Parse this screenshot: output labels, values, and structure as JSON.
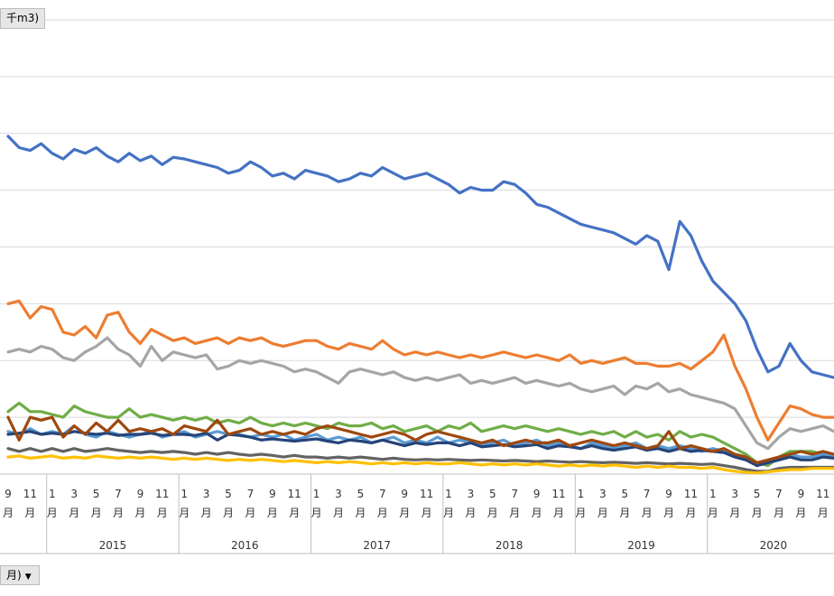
{
  "field_buttons": {
    "unit": "千m3)",
    "axis_field": "月)",
    "axis_field_arrow": "▼"
  },
  "chart_data": {
    "type": "line",
    "title": "",
    "xlabel": "",
    "ylabel": "",
    "grid": true,
    "legend": "none",
    "ylim": [
      0,
      8
    ],
    "x": [
      "2014-09",
      "2014-10",
      "2014-11",
      "2014-12",
      "2015-01",
      "2015-02",
      "2015-03",
      "2015-04",
      "2015-05",
      "2015-06",
      "2015-07",
      "2015-08",
      "2015-09",
      "2015-10",
      "2015-11",
      "2015-12",
      "2016-01",
      "2016-02",
      "2016-03",
      "2016-04",
      "2016-05",
      "2016-06",
      "2016-07",
      "2016-08",
      "2016-09",
      "2016-10",
      "2016-11",
      "2016-12",
      "2017-01",
      "2017-02",
      "2017-03",
      "2017-04",
      "2017-05",
      "2017-06",
      "2017-07",
      "2017-08",
      "2017-09",
      "2017-10",
      "2017-11",
      "2017-12",
      "2018-01",
      "2018-02",
      "2018-03",
      "2018-04",
      "2018-05",
      "2018-06",
      "2018-07",
      "2018-08",
      "2018-09",
      "2018-10",
      "2018-11",
      "2018-12",
      "2019-01",
      "2019-02",
      "2019-03",
      "2019-04",
      "2019-05",
      "2019-06",
      "2019-07",
      "2019-08",
      "2019-09",
      "2019-10",
      "2019-11",
      "2019-12",
      "2020-01",
      "2020-02",
      "2020-03",
      "2020-04",
      "2020-05",
      "2020-06",
      "2020-07",
      "2020-08",
      "2020-09",
      "2020-10",
      "2020-11",
      "2020-12"
    ],
    "year_groups": [
      {
        "label": "2015",
        "start": 4,
        "end": 15
      },
      {
        "label": "2016",
        "start": 16,
        "end": 27
      },
      {
        "label": "2017",
        "start": 28,
        "end": 39
      },
      {
        "label": "2018",
        "start": 40,
        "end": 51
      },
      {
        "label": "2019",
        "start": 52,
        "end": 63
      },
      {
        "label": "2020",
        "start": 64,
        "end": 75
      }
    ],
    "month_ticks": [
      {
        "index": 0,
        "label": "9",
        "sub": "月"
      },
      {
        "index": 2,
        "label": "11",
        "sub": "月"
      },
      {
        "index": 4,
        "label": "1",
        "sub": "月"
      },
      {
        "index": 6,
        "label": "3",
        "sub": "月"
      },
      {
        "index": 8,
        "label": "5",
        "sub": "月"
      },
      {
        "index": 10,
        "label": "7",
        "sub": "月"
      },
      {
        "index": 12,
        "label": "9",
        "sub": "月"
      },
      {
        "index": 14,
        "label": "11",
        "sub": "月"
      },
      {
        "index": 16,
        "label": "1",
        "sub": "月"
      },
      {
        "index": 18,
        "label": "3",
        "sub": "月"
      },
      {
        "index": 20,
        "label": "5",
        "sub": "月"
      },
      {
        "index": 22,
        "label": "7",
        "sub": "月"
      },
      {
        "index": 24,
        "label": "9",
        "sub": "月"
      },
      {
        "index": 26,
        "label": "11",
        "sub": "月"
      },
      {
        "index": 28,
        "label": "1",
        "sub": "月"
      },
      {
        "index": 30,
        "label": "3",
        "sub": "月"
      },
      {
        "index": 32,
        "label": "5",
        "sub": "月"
      },
      {
        "index": 34,
        "label": "7",
        "sub": "月"
      },
      {
        "index": 36,
        "label": "9",
        "sub": "月"
      },
      {
        "index": 38,
        "label": "11",
        "sub": "月"
      },
      {
        "index": 40,
        "label": "1",
        "sub": "月"
      },
      {
        "index": 42,
        "label": "3",
        "sub": "月"
      },
      {
        "index": 44,
        "label": "5",
        "sub": "月"
      },
      {
        "index": 46,
        "label": "7",
        "sub": "月"
      },
      {
        "index": 48,
        "label": "9",
        "sub": "月"
      },
      {
        "index": 50,
        "label": "11",
        "sub": "月"
      },
      {
        "index": 52,
        "label": "1",
        "sub": "月"
      },
      {
        "index": 54,
        "label": "3",
        "sub": "月"
      },
      {
        "index": 56,
        "label": "5",
        "sub": "月"
      },
      {
        "index": 58,
        "label": "7",
        "sub": "月"
      },
      {
        "index": 60,
        "label": "9",
        "sub": "月"
      },
      {
        "index": 62,
        "label": "11",
        "sub": "月"
      },
      {
        "index": 64,
        "label": "1",
        "sub": "月"
      },
      {
        "index": 66,
        "label": "3",
        "sub": "月"
      },
      {
        "index": 68,
        "label": "5",
        "sub": "月"
      },
      {
        "index": 70,
        "label": "7",
        "sub": "月"
      },
      {
        "index": 72,
        "label": "9",
        "sub": "月"
      },
      {
        "index": 74,
        "label": "11",
        "sub": "月"
      }
    ],
    "series": [
      {
        "color": "#4472c4",
        "values": [
          5.95,
          5.75,
          5.7,
          5.82,
          5.65,
          5.55,
          5.72,
          5.65,
          5.75,
          5.6,
          5.5,
          5.65,
          5.52,
          5.6,
          5.45,
          5.58,
          5.55,
          5.5,
          5.45,
          5.4,
          5.3,
          5.35,
          5.5,
          5.4,
          5.25,
          5.3,
          5.2,
          5.35,
          5.3,
          5.25,
          5.15,
          5.2,
          5.3,
          5.25,
          5.4,
          5.3,
          5.2,
          5.25,
          5.3,
          5.2,
          5.1,
          4.95,
          5.05,
          5.0,
          5.0,
          5.15,
          5.1,
          4.95,
          4.75,
          4.7,
          4.6,
          4.5,
          4.4,
          4.35,
          4.3,
          4.25,
          4.15,
          4.05,
          4.2,
          4.1,
          3.6,
          4.45,
          4.2,
          3.75,
          3.4,
          3.2,
          3.0,
          2.7,
          2.2,
          1.8,
          1.9,
          2.3,
          2.0,
          1.8,
          1.75,
          1.7
        ]
      },
      {
        "color": "#ed7d31",
        "values": [
          3.0,
          3.05,
          2.75,
          2.95,
          2.9,
          2.5,
          2.45,
          2.6,
          2.4,
          2.8,
          2.85,
          2.5,
          2.3,
          2.55,
          2.45,
          2.35,
          2.4,
          2.3,
          2.35,
          2.4,
          2.3,
          2.4,
          2.35,
          2.4,
          2.3,
          2.25,
          2.3,
          2.35,
          2.35,
          2.25,
          2.2,
          2.3,
          2.25,
          2.2,
          2.35,
          2.2,
          2.1,
          2.15,
          2.1,
          2.15,
          2.1,
          2.05,
          2.1,
          2.05,
          2.1,
          2.15,
          2.1,
          2.05,
          2.1,
          2.05,
          2.0,
          2.1,
          1.95,
          2.0,
          1.95,
          2.0,
          2.05,
          1.95,
          1.95,
          1.9,
          1.9,
          1.95,
          1.85,
          2.0,
          2.15,
          2.45,
          1.9,
          1.5,
          1.0,
          0.6,
          0.9,
          1.2,
          1.15,
          1.05,
          1.0,
          1.0
        ]
      },
      {
        "color": "#a5a5a5",
        "values": [
          2.15,
          2.2,
          2.15,
          2.25,
          2.2,
          2.05,
          2.0,
          2.15,
          2.25,
          2.4,
          2.2,
          2.1,
          1.9,
          2.25,
          2.0,
          2.15,
          2.1,
          2.05,
          2.1,
          1.85,
          1.9,
          2.0,
          1.95,
          2.0,
          1.95,
          1.9,
          1.8,
          1.85,
          1.8,
          1.7,
          1.6,
          1.8,
          1.85,
          1.8,
          1.75,
          1.8,
          1.7,
          1.65,
          1.7,
          1.65,
          1.7,
          1.75,
          1.6,
          1.65,
          1.6,
          1.65,
          1.7,
          1.6,
          1.65,
          1.6,
          1.55,
          1.6,
          1.5,
          1.45,
          1.5,
          1.55,
          1.4,
          1.55,
          1.5,
          1.6,
          1.45,
          1.5,
          1.4,
          1.35,
          1.3,
          1.25,
          1.15,
          0.85,
          0.55,
          0.45,
          0.65,
          0.8,
          0.75,
          0.8,
          0.85,
          0.75
        ]
      },
      {
        "color": "#70ad47",
        "values": [
          1.1,
          1.25,
          1.1,
          1.1,
          1.05,
          1.0,
          1.2,
          1.1,
          1.05,
          1.0,
          1.0,
          1.15,
          1.0,
          1.05,
          1.0,
          0.95,
          1.0,
          0.95,
          1.0,
          0.9,
          0.95,
          0.9,
          1.0,
          0.9,
          0.85,
          0.9,
          0.85,
          0.9,
          0.85,
          0.8,
          0.9,
          0.85,
          0.85,
          0.9,
          0.8,
          0.85,
          0.75,
          0.8,
          0.85,
          0.75,
          0.85,
          0.8,
          0.9,
          0.75,
          0.8,
          0.85,
          0.8,
          0.85,
          0.8,
          0.75,
          0.8,
          0.75,
          0.7,
          0.75,
          0.7,
          0.75,
          0.65,
          0.75,
          0.65,
          0.7,
          0.6,
          0.75,
          0.65,
          0.7,
          0.65,
          0.55,
          0.45,
          0.35,
          0.2,
          0.15,
          0.3,
          0.4,
          0.4,
          0.4,
          0.35,
          0.35
        ]
      },
      {
        "color": "#5b9bd5",
        "values": [
          0.75,
          0.7,
          0.8,
          0.7,
          0.75,
          0.7,
          0.85,
          0.7,
          0.65,
          0.75,
          0.7,
          0.65,
          0.7,
          0.75,
          0.65,
          0.7,
          0.75,
          0.65,
          0.7,
          0.75,
          0.7,
          0.7,
          0.65,
          0.7,
          0.65,
          0.7,
          0.6,
          0.65,
          0.7,
          0.6,
          0.65,
          0.6,
          0.65,
          0.55,
          0.6,
          0.65,
          0.55,
          0.6,
          0.55,
          0.65,
          0.55,
          0.6,
          0.55,
          0.5,
          0.55,
          0.6,
          0.5,
          0.55,
          0.6,
          0.5,
          0.55,
          0.5,
          0.45,
          0.55,
          0.5,
          0.45,
          0.5,
          0.55,
          0.45,
          0.5,
          0.45,
          0.5,
          0.45,
          0.4,
          0.45,
          0.4,
          0.35,
          0.3,
          0.15,
          0.2,
          0.3,
          0.35,
          0.3,
          0.3,
          0.35,
          0.3
        ]
      },
      {
        "color": "#264478",
        "values": [
          0.7,
          0.72,
          0.75,
          0.7,
          0.72,
          0.7,
          0.75,
          0.72,
          0.7,
          0.72,
          0.68,
          0.7,
          0.7,
          0.72,
          0.68,
          0.7,
          0.7,
          0.68,
          0.72,
          0.6,
          0.7,
          0.68,
          0.65,
          0.6,
          0.62,
          0.6,
          0.58,
          0.6,
          0.62,
          0.58,
          0.55,
          0.6,
          0.58,
          0.55,
          0.6,
          0.55,
          0.5,
          0.55,
          0.52,
          0.55,
          0.55,
          0.5,
          0.55,
          0.48,
          0.5,
          0.52,
          0.48,
          0.5,
          0.52,
          0.45,
          0.5,
          0.48,
          0.45,
          0.5,
          0.45,
          0.42,
          0.45,
          0.48,
          0.42,
          0.45,
          0.4,
          0.45,
          0.4,
          0.42,
          0.4,
          0.38,
          0.3,
          0.25,
          0.15,
          0.2,
          0.25,
          0.3,
          0.25,
          0.25,
          0.3,
          0.28
        ]
      },
      {
        "color": "#9e480e",
        "values": [
          1.0,
          0.6,
          1.0,
          0.95,
          1.0,
          0.65,
          0.85,
          0.7,
          0.9,
          0.75,
          0.95,
          0.75,
          0.8,
          0.75,
          0.8,
          0.7,
          0.85,
          0.8,
          0.75,
          0.95,
          0.7,
          0.75,
          0.8,
          0.7,
          0.75,
          0.7,
          0.75,
          0.7,
          0.8,
          0.85,
          0.8,
          0.75,
          0.7,
          0.65,
          0.7,
          0.75,
          0.7,
          0.6,
          0.7,
          0.75,
          0.7,
          0.65,
          0.6,
          0.55,
          0.6,
          0.5,
          0.55,
          0.6,
          0.55,
          0.55,
          0.6,
          0.5,
          0.55,
          0.6,
          0.55,
          0.5,
          0.55,
          0.5,
          0.45,
          0.5,
          0.75,
          0.45,
          0.5,
          0.45,
          0.4,
          0.45,
          0.35,
          0.3,
          0.2,
          0.25,
          0.3,
          0.35,
          0.4,
          0.35,
          0.4,
          0.35
        ]
      },
      {
        "color": "#636363",
        "values": [
          0.45,
          0.4,
          0.45,
          0.4,
          0.45,
          0.4,
          0.45,
          0.4,
          0.42,
          0.45,
          0.42,
          0.4,
          0.38,
          0.4,
          0.38,
          0.4,
          0.38,
          0.35,
          0.38,
          0.35,
          0.38,
          0.35,
          0.33,
          0.35,
          0.33,
          0.3,
          0.33,
          0.3,
          0.3,
          0.28,
          0.3,
          0.28,
          0.3,
          0.28,
          0.26,
          0.28,
          0.26,
          0.25,
          0.26,
          0.25,
          0.26,
          0.25,
          0.24,
          0.25,
          0.24,
          0.23,
          0.24,
          0.23,
          0.22,
          0.23,
          0.22,
          0.21,
          0.22,
          0.21,
          0.2,
          0.21,
          0.2,
          0.19,
          0.2,
          0.19,
          0.18,
          0.19,
          0.18,
          0.17,
          0.18,
          0.15,
          0.12,
          0.08,
          0.05,
          0.05,
          0.1,
          0.12,
          0.12,
          0.12,
          0.12,
          0.12
        ]
      },
      {
        "color": "#ffc000",
        "values": [
          0.3,
          0.32,
          0.28,
          0.3,
          0.32,
          0.28,
          0.3,
          0.28,
          0.32,
          0.3,
          0.28,
          0.3,
          0.28,
          0.3,
          0.28,
          0.26,
          0.28,
          0.26,
          0.28,
          0.26,
          0.24,
          0.26,
          0.24,
          0.26,
          0.24,
          0.22,
          0.24,
          0.22,
          0.2,
          0.22,
          0.2,
          0.22,
          0.2,
          0.18,
          0.2,
          0.18,
          0.2,
          0.18,
          0.2,
          0.18,
          0.18,
          0.2,
          0.18,
          0.16,
          0.18,
          0.16,
          0.18,
          0.16,
          0.18,
          0.16,
          0.14,
          0.16,
          0.14,
          0.16,
          0.14,
          0.16,
          0.14,
          0.12,
          0.14,
          0.12,
          0.14,
          0.12,
          0.12,
          0.1,
          0.12,
          0.08,
          0.05,
          0.03,
          0.02,
          0.04,
          0.06,
          0.08,
          0.08,
          0.1,
          0.1,
          0.1
        ]
      }
    ]
  }
}
